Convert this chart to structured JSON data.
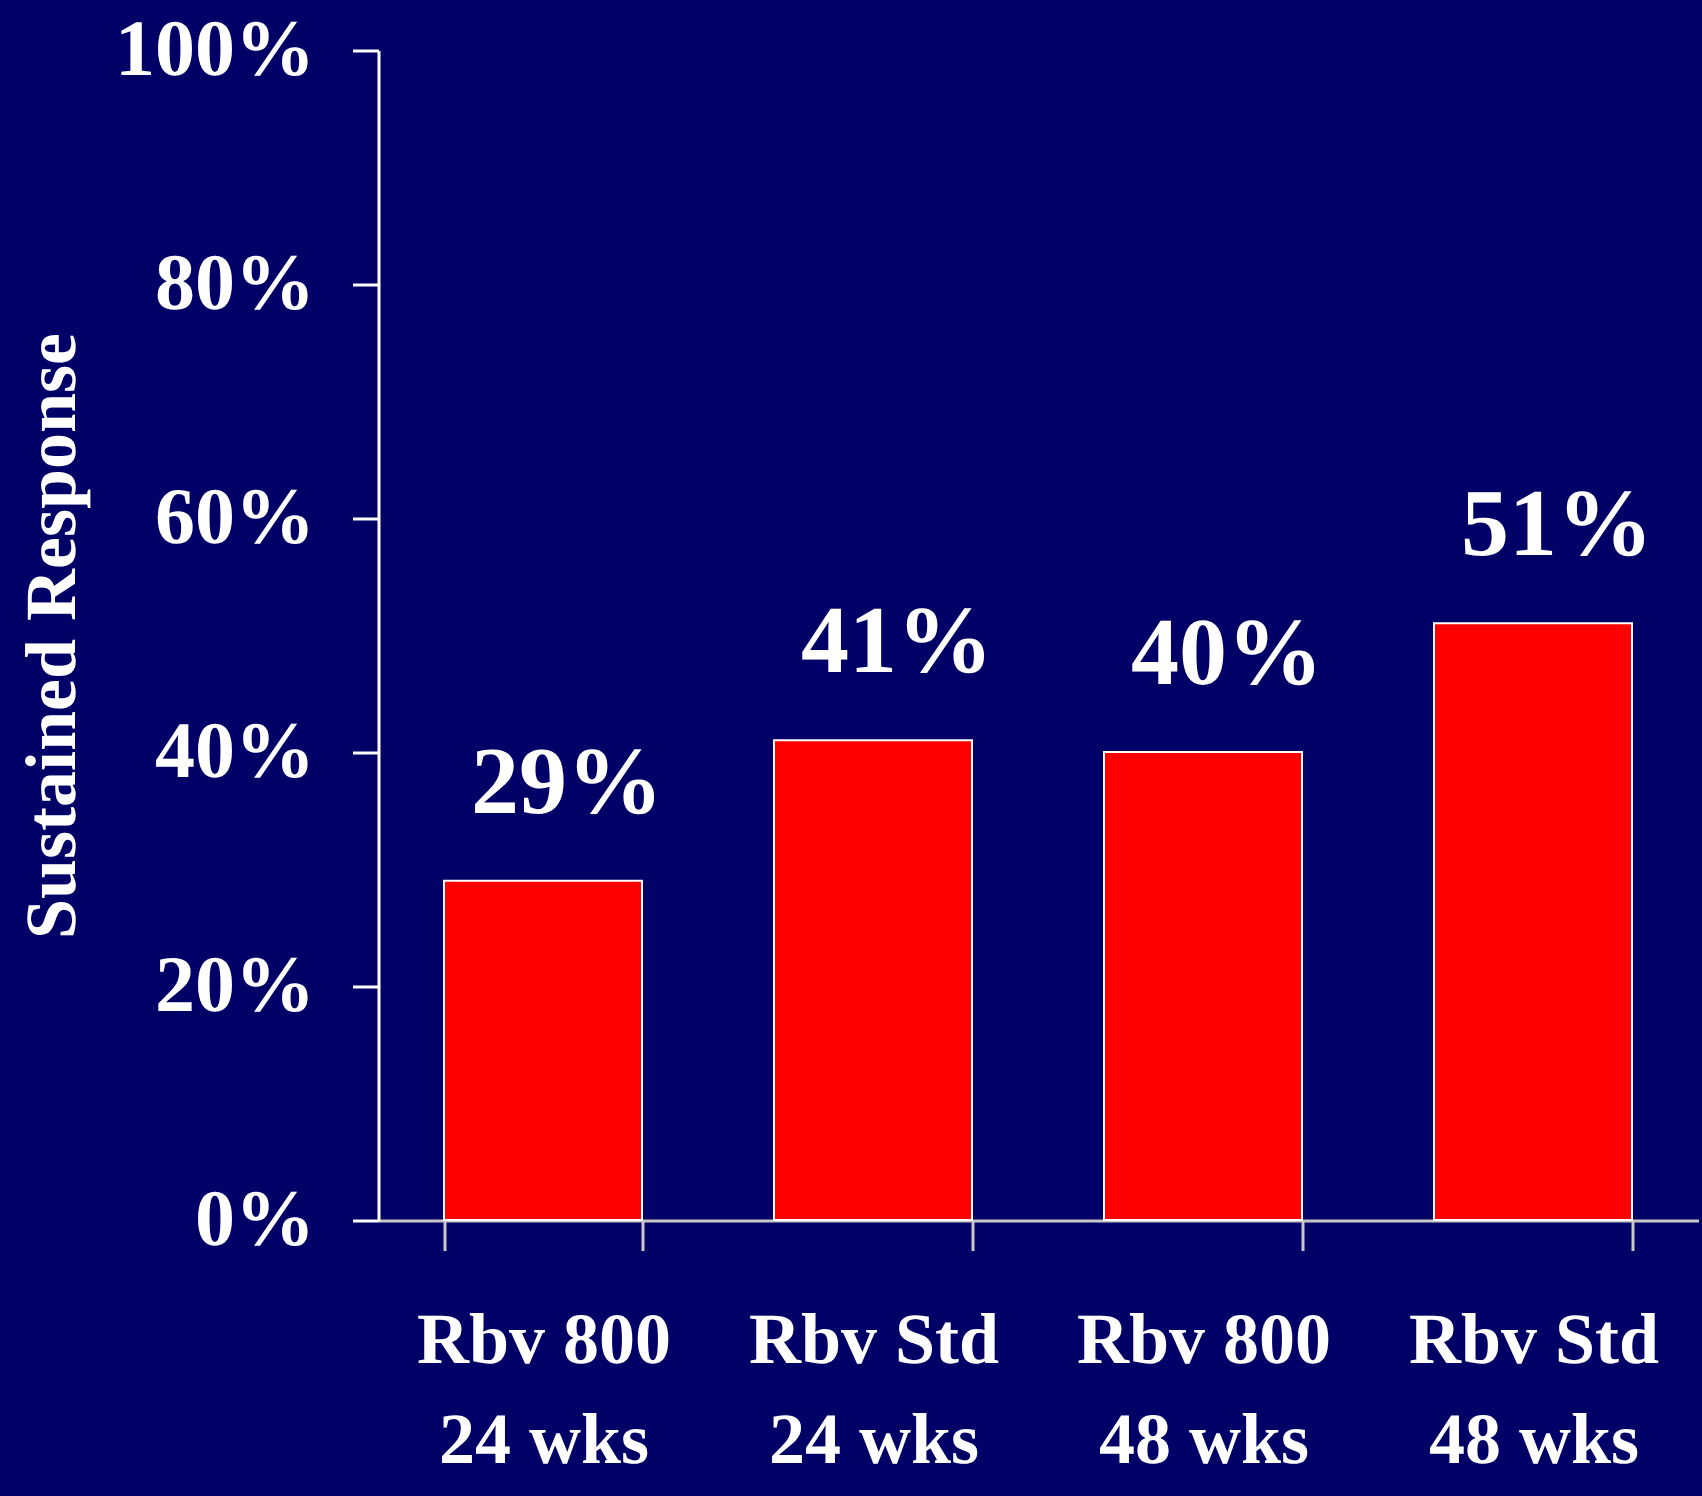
{
  "chart_data": {
    "type": "bar",
    "categories": [
      "Rbv 800\n24 wks",
      "Rbv Std\n24 wks",
      "Rbv 800\n48 wks",
      "Rbv Std\n48 wks"
    ],
    "values": [
      29,
      41,
      40,
      51
    ],
    "value_labels": [
      "29%",
      "41%",
      "40%",
      "51%"
    ],
    "color": "#ff0000",
    "ylabel": "Sustained Response",
    "ylim": [
      0,
      100
    ],
    "yticks": [
      {
        "value": 0,
        "label": "0%"
      },
      {
        "value": 20,
        "label": "20%"
      },
      {
        "value": 40,
        "label": "40%"
      },
      {
        "value": 60,
        "label": "60%"
      },
      {
        "value": 80,
        "label": "80%"
      },
      {
        "value": 100,
        "label": "100%"
      }
    ]
  }
}
